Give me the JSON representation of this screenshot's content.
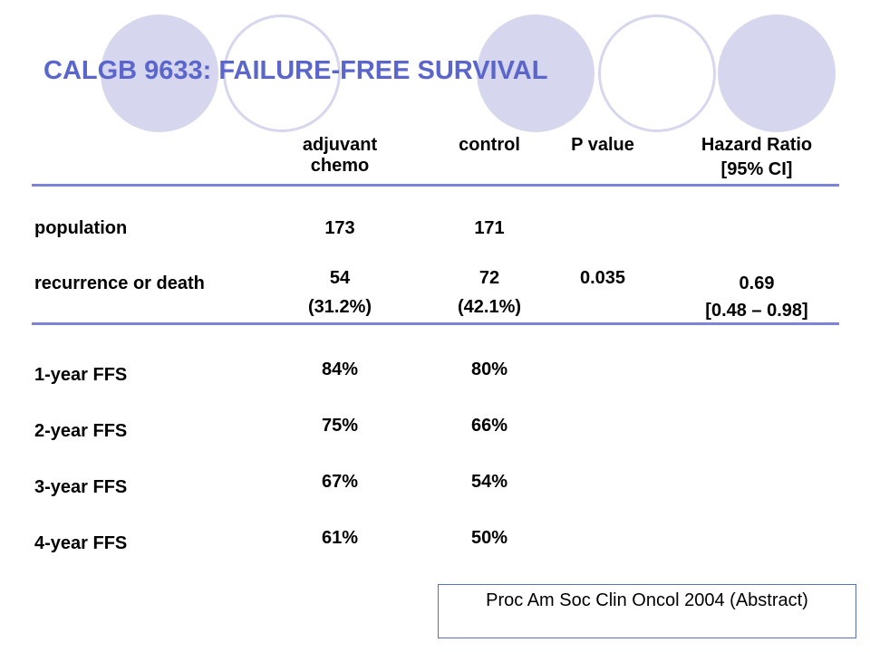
{
  "slide": {
    "title": "CALGB 9633: FAILURE-FREE SURVIVAL",
    "accent_color": "#5b66cc",
    "circle_color": "#d6d6ee",
    "rule_color": "#7b84d6"
  },
  "table": {
    "headers": {
      "adjuvant": "adjuvant\nchemo",
      "control": "control",
      "pvalue": "P value",
      "hr_line1": "Hazard Ratio",
      "hr_line2": "[95% CI]"
    },
    "rows": {
      "population": {
        "label": "population",
        "adjuvant": "173",
        "control": "171"
      },
      "recurrence": {
        "label": "recurrence or death",
        "adjuvant_n": "54",
        "adjuvant_pct": "(31.2%)",
        "control_n": "72",
        "control_pct": "(42.1%)",
        "pvalue": "0.035",
        "hr": "0.69",
        "hr_ci": "[0.48 – 0.98]"
      },
      "ffs": [
        {
          "label": "1-year FFS",
          "adjuvant": "84%",
          "control": "80%"
        },
        {
          "label": "2-year FFS",
          "adjuvant": "75%",
          "control": "66%"
        },
        {
          "label": "3-year FFS",
          "adjuvant": "67%",
          "control": "54%"
        },
        {
          "label": "4-year FFS",
          "adjuvant": "61%",
          "control": "50%"
        }
      ]
    }
  },
  "citation": "Proc Am Soc Clin Oncol 2004 (Abstract)"
}
